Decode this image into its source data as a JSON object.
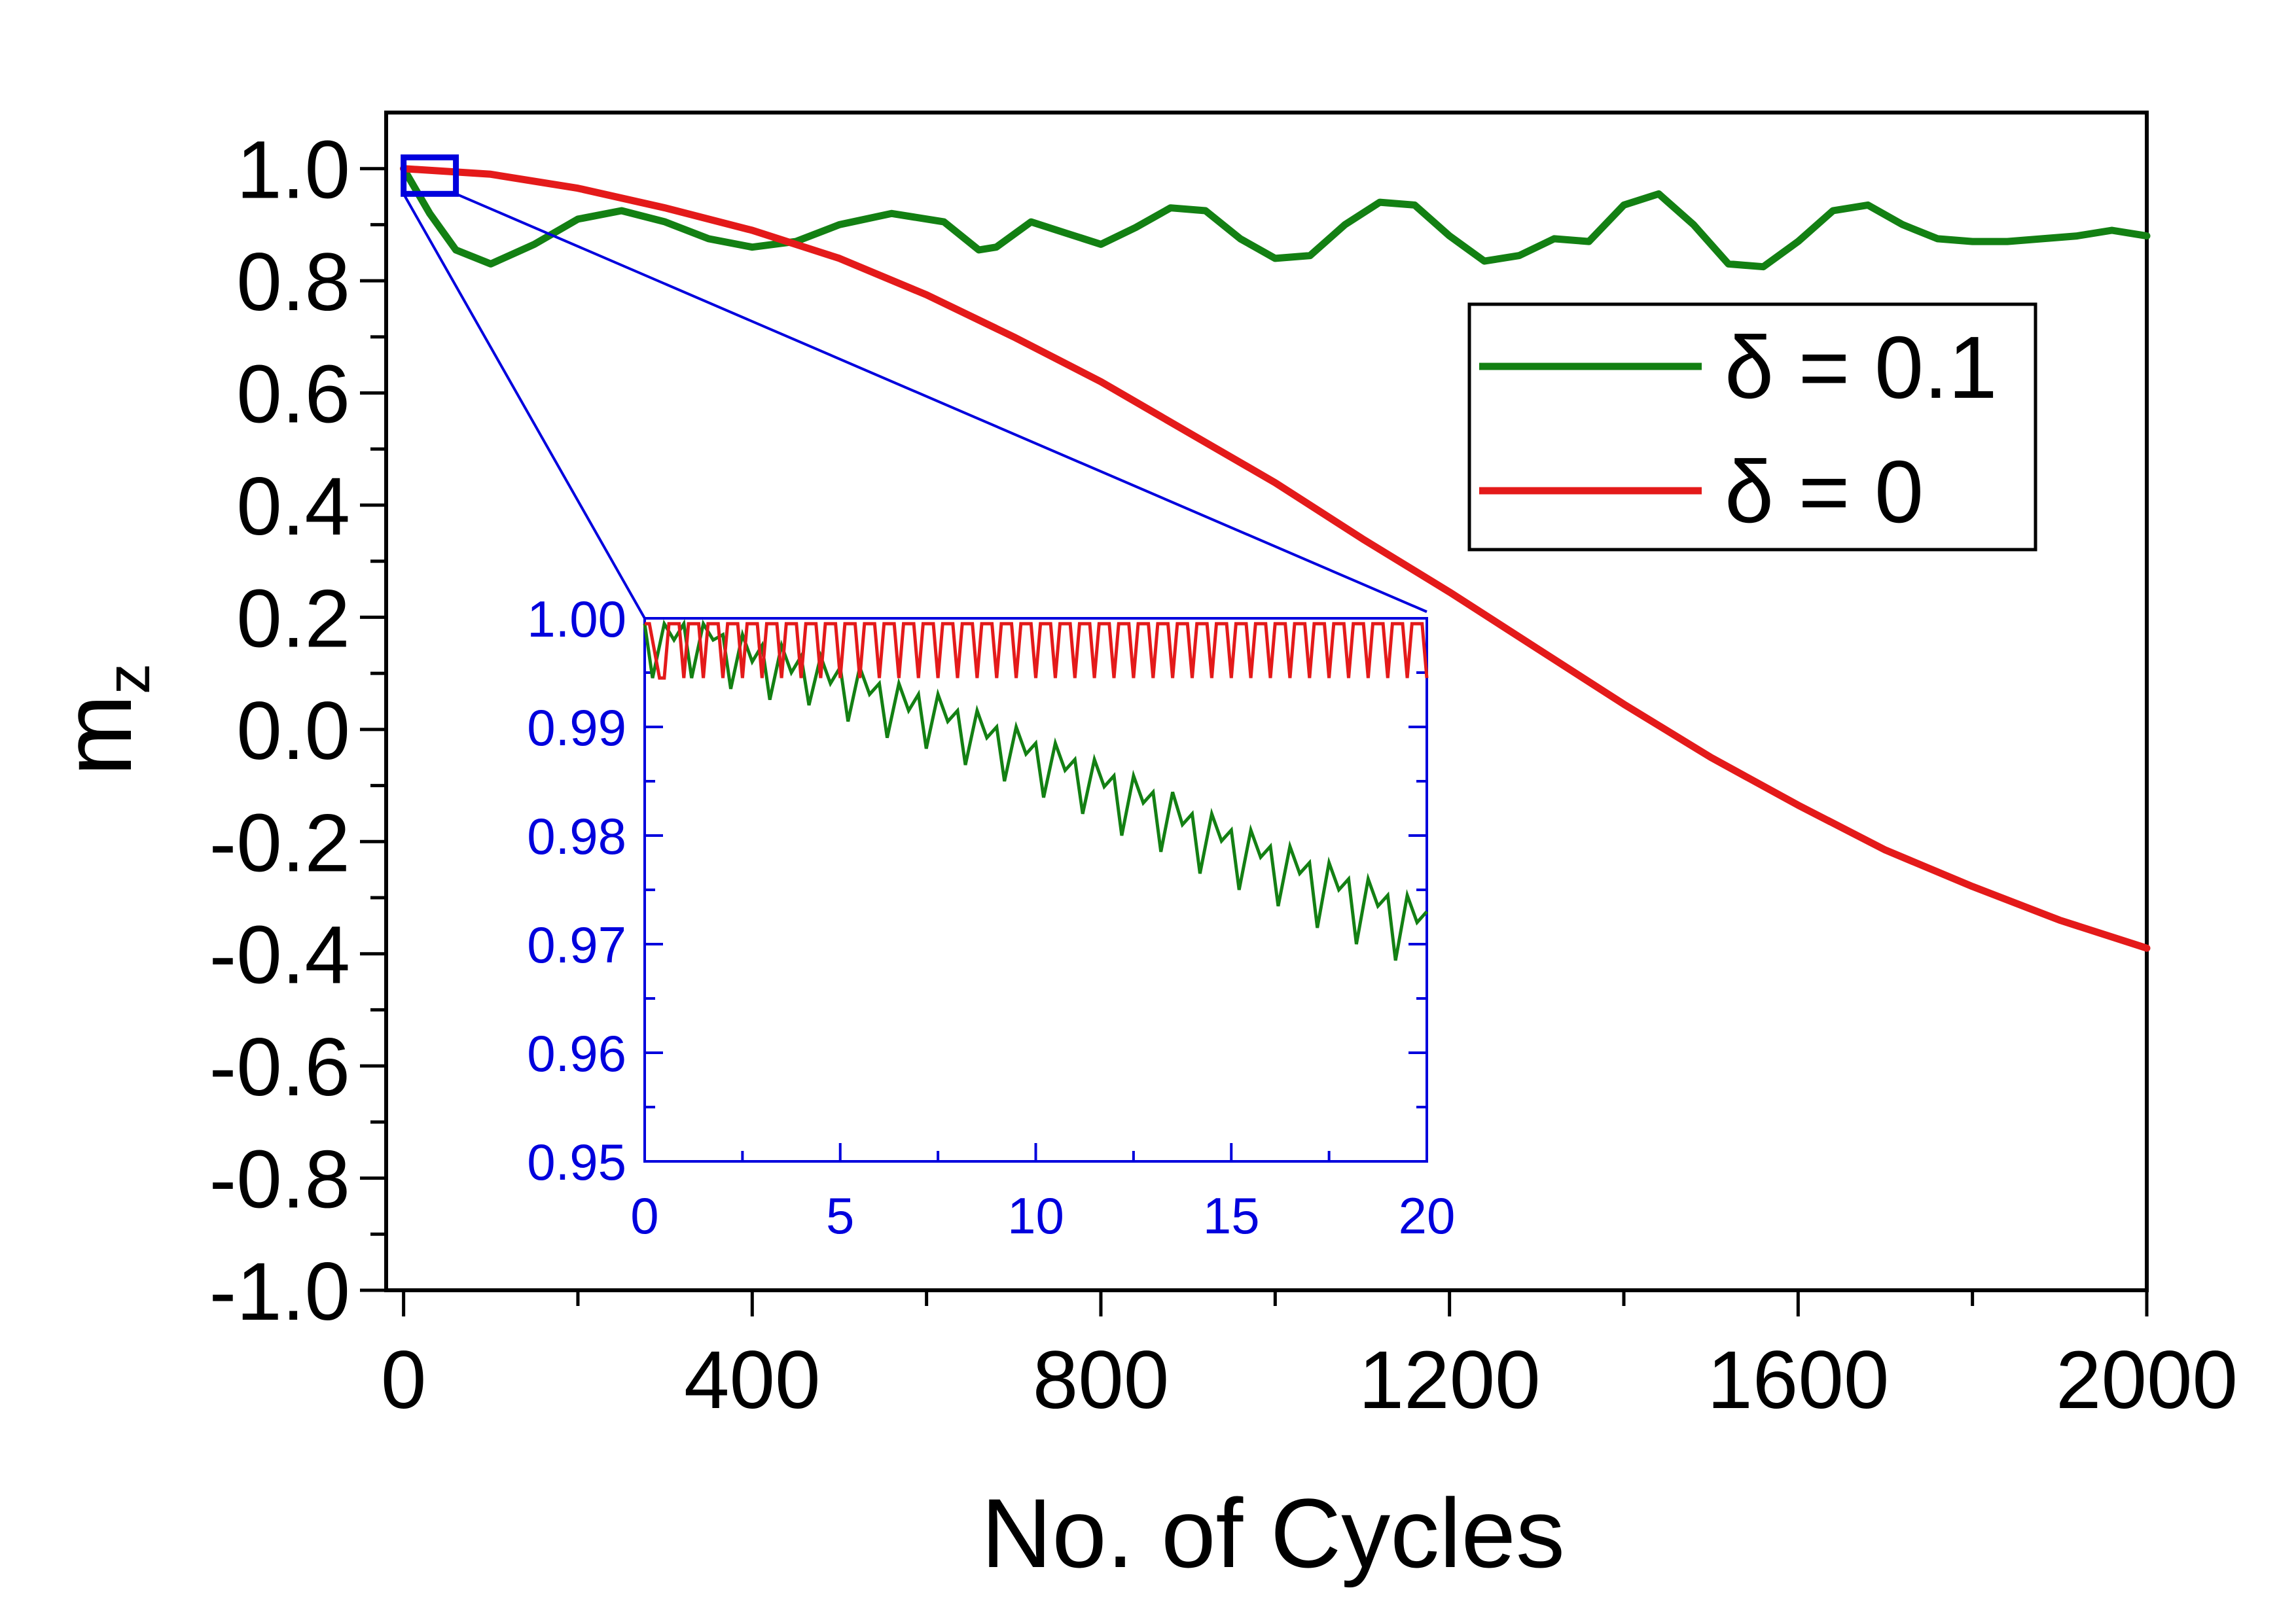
{
  "chart_data": [
    {
      "id": "main",
      "type": "line",
      "xlabel": "No. of Cycles",
      "ylabel": "m",
      "ylabel_subscript": "z",
      "xlim": [
        -20,
        2000
      ],
      "ylim": [
        -1.0,
        1.1
      ],
      "x_ticks": [
        "0",
        "400",
        "800",
        "1200",
        "1600",
        "2000"
      ],
      "x_tick_values": [
        0,
        400,
        800,
        1200,
        1600,
        2000
      ],
      "y_ticks": [
        "1.0",
        "0.8",
        "0.6",
        "0.4",
        "0.2",
        "0.0",
        "-0.2",
        "-0.4",
        "-0.6",
        "-0.8",
        "-1.0"
      ],
      "y_tick_values": [
        1.0,
        0.8,
        0.6,
        0.4,
        0.2,
        0.0,
        -0.2,
        -0.4,
        -0.6,
        -0.8,
        -1.0
      ],
      "legend_position": "top-right",
      "series": [
        {
          "name": "δ = 0.1",
          "color": "#138013",
          "x": [
            0,
            30,
            60,
            100,
            150,
            200,
            250,
            300,
            350,
            400,
            450,
            500,
            560,
            620,
            660,
            680,
            720,
            760,
            800,
            840,
            880,
            920,
            960,
            1000,
            1040,
            1080,
            1120,
            1160,
            1200,
            1240,
            1280,
            1320,
            1360,
            1400,
            1440,
            1480,
            1520,
            1560,
            1600,
            1640,
            1680,
            1720,
            1760,
            1800,
            1840,
            1880,
            1920,
            1960,
            2000
          ],
          "y": [
            1.0,
            0.92,
            0.855,
            0.83,
            0.865,
            0.91,
            0.925,
            0.905,
            0.875,
            0.86,
            0.87,
            0.9,
            0.92,
            0.905,
            0.855,
            0.86,
            0.905,
            0.885,
            0.865,
            0.895,
            0.93,
            0.925,
            0.875,
            0.84,
            0.845,
            0.9,
            0.94,
            0.935,
            0.88,
            0.835,
            0.845,
            0.875,
            0.87,
            0.935,
            0.955,
            0.9,
            0.83,
            0.825,
            0.87,
            0.925,
            0.935,
            0.9,
            0.875,
            0.87,
            0.87,
            0.875,
            0.88,
            0.89,
            0.88
          ]
        },
        {
          "name": "δ = 0",
          "color": "#e41a1a",
          "x": [
            0,
            100,
            200,
            300,
            400,
            500,
            600,
            700,
            800,
            900,
            1000,
            1100,
            1200,
            1300,
            1400,
            1500,
            1600,
            1700,
            1800,
            1900,
            2000
          ],
          "y": [
            1.0,
            0.99,
            0.965,
            0.93,
            0.89,
            0.84,
            0.775,
            0.7,
            0.62,
            0.53,
            0.44,
            0.34,
            0.245,
            0.145,
            0.045,
            -0.05,
            -0.135,
            -0.215,
            -0.28,
            -0.34,
            -0.39
          ]
        }
      ],
      "zoom_region": {
        "x": [
          0,
          30
        ],
        "y": [
          0.955,
          1.02
        ],
        "color": "#0000dd"
      }
    },
    {
      "id": "inset",
      "type": "line",
      "xlim": [
        0,
        20
      ],
      "ylim": [
        0.95,
        1.0
      ],
      "x_ticks": [
        "0",
        "5",
        "10",
        "15",
        "20"
      ],
      "x_tick_values": [
        0,
        5,
        10,
        15,
        20
      ],
      "y_ticks": [
        "1.00",
        "0.99",
        "0.98",
        "0.97",
        "0.96",
        "0.95"
      ],
      "y_tick_values": [
        1.0,
        0.99,
        0.98,
        0.97,
        0.96,
        0.95
      ],
      "axis_color": "#0000dd",
      "series": [
        {
          "name": "δ = 0.1",
          "color": "#138013",
          "x": [
            0.0,
            0.2,
            0.5,
            0.75,
            1.0,
            1.2,
            1.5,
            1.75,
            2.0,
            2.2,
            2.5,
            2.75,
            3.0,
            3.2,
            3.5,
            3.75,
            4.0,
            4.2,
            4.5,
            4.75,
            5.0,
            5.2,
            5.5,
            5.75,
            6.0,
            6.2,
            6.5,
            6.75,
            7.0,
            7.2,
            7.5,
            7.75,
            8.0,
            8.2,
            8.5,
            8.75,
            9.0,
            9.2,
            9.5,
            9.75,
            10.0,
            10.2,
            10.5,
            10.75,
            11.0,
            11.2,
            11.5,
            11.75,
            12.0,
            12.2,
            12.5,
            12.75,
            13.0,
            13.2,
            13.5,
            13.75,
            14.0,
            14.2,
            14.5,
            14.75,
            15.0,
            15.2,
            15.5,
            15.75,
            16.0,
            16.2,
            16.5,
            16.75,
            17.0,
            17.2,
            17.5,
            17.75,
            18.0,
            18.2,
            18.5,
            18.75,
            19.0,
            19.2,
            19.5,
            19.75,
            20.0
          ],
          "y": [
            0.9995,
            0.9945,
            0.9995,
            0.998,
            0.9995,
            0.9945,
            0.9995,
            0.998,
            0.9985,
            0.9935,
            0.9985,
            0.996,
            0.9975,
            0.9925,
            0.9975,
            0.995,
            0.9965,
            0.992,
            0.9965,
            0.994,
            0.9955,
            0.9905,
            0.9955,
            0.993,
            0.994,
            0.989,
            0.994,
            0.9915,
            0.993,
            0.988,
            0.993,
            0.9905,
            0.9915,
            0.9865,
            0.9915,
            0.989,
            0.99,
            0.985,
            0.99,
            0.9875,
            0.9885,
            0.9835,
            0.9885,
            0.986,
            0.987,
            0.982,
            0.987,
            0.9845,
            0.9855,
            0.98,
            0.9855,
            0.983,
            0.984,
            0.9785,
            0.984,
            0.981,
            0.982,
            0.9765,
            0.982,
            0.9795,
            0.9805,
            0.975,
            0.9805,
            0.978,
            0.979,
            0.9735,
            0.979,
            0.9765,
            0.9775,
            0.9715,
            0.9775,
            0.975,
            0.976,
            0.97,
            0.976,
            0.9735,
            0.9745,
            0.9685,
            0.9745,
            0.972,
            0.973
          ]
        },
        {
          "name": "δ = 0",
          "color": "#e41a1a",
          "x": [
            0.0,
            0.12,
            0.38,
            0.5,
            0.62,
            0.88,
            1.0,
            1.12,
            1.38,
            1.5,
            1.62,
            1.88,
            2.0,
            2.12,
            2.38,
            2.5,
            2.62,
            2.88,
            3.0,
            3.12,
            3.38,
            3.5,
            3.62,
            3.88,
            4.0,
            4.12,
            4.38,
            4.5,
            4.62,
            4.88,
            5.0,
            5.12,
            5.38,
            5.5,
            5.62,
            5.88,
            6.0,
            6.12,
            6.38,
            6.5,
            6.62,
            6.88,
            7.0,
            7.12,
            7.38,
            7.5,
            7.62,
            7.88,
            8.0,
            8.12,
            8.38,
            8.5,
            8.62,
            8.88,
            9.0,
            9.12,
            9.38,
            9.5,
            9.62,
            9.88,
            10.0,
            10.12,
            10.38,
            10.5,
            10.62,
            10.88,
            11.0,
            11.12,
            11.38,
            11.5,
            11.62,
            11.88,
            12.0,
            12.12,
            12.38,
            12.5,
            12.62,
            12.88,
            13.0,
            13.12,
            13.38,
            13.5,
            13.62,
            13.88,
            14.0,
            14.12,
            14.38,
            14.5,
            14.62,
            14.88,
            15.0,
            15.12,
            15.38,
            15.5,
            15.62,
            15.88,
            16.0,
            16.12,
            16.38,
            16.5,
            16.62,
            16.88,
            17.0,
            17.12,
            17.38,
            17.5,
            17.62,
            17.88,
            18.0,
            18.12,
            18.38,
            18.5,
            18.62,
            18.88,
            19.0,
            19.12,
            19.38,
            19.5,
            19.62,
            19.88,
            20.0
          ],
          "y": [
            0.9995,
            0.9995,
            0.9945,
            0.9945,
            0.9995,
            0.9995,
            0.9945,
            0.9995,
            0.9995,
            0.9945,
            0.9995,
            0.9995,
            0.9945,
            0.9995,
            0.9995,
            0.9945,
            0.9995,
            0.9995,
            0.9945,
            0.9995,
            0.9995,
            0.9945,
            0.9995,
            0.9995,
            0.9945,
            0.9995,
            0.9995,
            0.9945,
            0.9995,
            0.9995,
            0.9945,
            0.9995,
            0.9995,
            0.9945,
            0.9995,
            0.9995,
            0.9945,
            0.9995,
            0.9995,
            0.9945,
            0.9995,
            0.9995,
            0.9945,
            0.9995,
            0.9995,
            0.9945,
            0.9995,
            0.9995,
            0.9945,
            0.9995,
            0.9995,
            0.9945,
            0.9995,
            0.9995,
            0.9945,
            0.9995,
            0.9995,
            0.9945,
            0.9995,
            0.9995,
            0.9945,
            0.9995,
            0.9995,
            0.9945,
            0.9995,
            0.9995,
            0.9945,
            0.9995,
            0.9995,
            0.9945,
            0.9995,
            0.9995,
            0.9945,
            0.9995,
            0.9995,
            0.9945,
            0.9995,
            0.9995,
            0.9945,
            0.9995,
            0.9995,
            0.9945,
            0.9995,
            0.9995,
            0.9945,
            0.9995,
            0.9995,
            0.9945,
            0.9995,
            0.9995,
            0.9945,
            0.9995,
            0.9995,
            0.9945,
            0.9995,
            0.9995,
            0.9945,
            0.9995,
            0.9995,
            0.9945,
            0.9995,
            0.9995,
            0.9945,
            0.9995,
            0.9995,
            0.9945,
            0.9995,
            0.9995,
            0.9945,
            0.9995,
            0.9995,
            0.9945,
            0.9995,
            0.9995,
            0.9945,
            0.9995,
            0.9995,
            0.9945,
            0.9995,
            0.9995,
            0.9945
          ]
        }
      ]
    }
  ]
}
